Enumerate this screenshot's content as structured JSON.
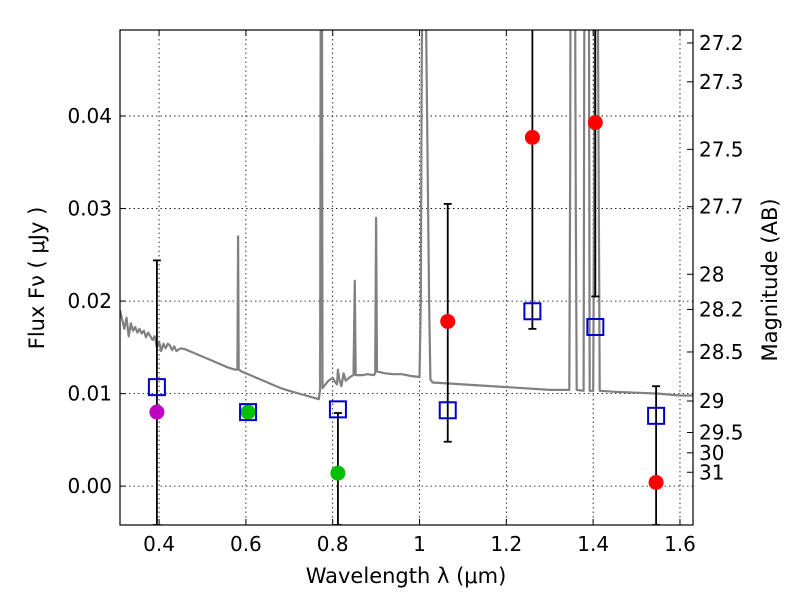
{
  "chart_data": {
    "type": "scatter",
    "title": "",
    "xlabel": "Wavelength  λ (μm)",
    "ylabel": "Flux  Fν  ( μJy )",
    "ylabel_right": "Magnitude (AB)",
    "xlim": [
      0.31,
      1.63
    ],
    "ylim": [
      -0.0042,
      0.0493
    ],
    "grid": true,
    "x_ticks": [
      0.4,
      0.6,
      0.8,
      1.0,
      1.2,
      1.4,
      1.6
    ],
    "x_tick_labels": [
      "0.4",
      "0.6",
      "0.8",
      "1",
      "1.2",
      "1.4",
      "1.6"
    ],
    "y_ticks": [
      0.0,
      0.01,
      0.02,
      0.03,
      0.04
    ],
    "y_tick_labels": [
      "0.00",
      "0.01",
      "0.02",
      "0.03",
      "0.04"
    ],
    "right_ticks": [
      {
        "label": "27.2",
        "flux": 0.0479
      },
      {
        "label": "27.3",
        "flux": 0.0437
      },
      {
        "label": "27.5",
        "flux": 0.0364
      },
      {
        "label": "27.7",
        "flux": 0.0302
      },
      {
        "label": "28",
        "flux": 0.0229
      },
      {
        "label": "28.2",
        "flux": 0.0191
      },
      {
        "label": "28.5",
        "flux": 0.0145
      },
      {
        "label": "29",
        "flux": 0.0092
      },
      {
        "label": "29.5",
        "flux": 0.0058
      },
      {
        "label": "30",
        "flux": 0.0036
      },
      {
        "label": "31",
        "flux": 0.0015
      }
    ],
    "sed_model": {
      "name": "best-fit SED",
      "color": "#808080",
      "points": [
        [
          0.31,
          0.019
        ],
        [
          0.32,
          0.017
        ],
        [
          0.325,
          0.0182
        ],
        [
          0.33,
          0.0162
        ],
        [
          0.335,
          0.0176
        ],
        [
          0.34,
          0.0168
        ],
        [
          0.345,
          0.0172
        ],
        [
          0.35,
          0.0166
        ],
        [
          0.355,
          0.017
        ],
        [
          0.36,
          0.0165
        ],
        [
          0.365,
          0.0168
        ],
        [
          0.37,
          0.0161
        ],
        [
          0.375,
          0.0166
        ],
        [
          0.38,
          0.0162
        ],
        [
          0.385,
          0.0158
        ],
        [
          0.39,
          0.0162
        ],
        [
          0.395,
          0.015
        ],
        [
          0.4,
          0.0156
        ],
        [
          0.405,
          0.0146
        ],
        [
          0.41,
          0.0154
        ],
        [
          0.415,
          0.0149
        ],
        [
          0.42,
          0.0154
        ],
        [
          0.425,
          0.0152
        ],
        [
          0.43,
          0.0147
        ],
        [
          0.435,
          0.0151
        ],
        [
          0.44,
          0.0146
        ],
        [
          0.45,
          0.0149
        ],
        [
          0.46,
          0.0148
        ],
        [
          0.47,
          0.0146
        ],
        [
          0.48,
          0.0144
        ],
        [
          0.5,
          0.014
        ],
        [
          0.52,
          0.0136
        ],
        [
          0.54,
          0.0132
        ],
        [
          0.56,
          0.0128
        ],
        [
          0.575,
          0.0126
        ],
        [
          0.5805,
          0.0126
        ],
        [
          0.582,
          0.027
        ],
        [
          0.5835,
          0.0126
        ],
        [
          0.59,
          0.0124
        ],
        [
          0.62,
          0.0118
        ],
        [
          0.65,
          0.0112
        ],
        [
          0.68,
          0.0106
        ],
        [
          0.7,
          0.0103
        ],
        [
          0.73,
          0.0099
        ],
        [
          0.76,
          0.0095
        ],
        [
          0.768,
          0.0094
        ],
        [
          0.771,
          0.0104
        ],
        [
          0.7725,
          0.06
        ],
        [
          0.775,
          0.06
        ],
        [
          0.7765,
          0.0106
        ],
        [
          0.78,
          0.0108
        ],
        [
          0.79,
          0.0114
        ],
        [
          0.8,
          0.0117
        ],
        [
          0.806,
          0.0112
        ],
        [
          0.81,
          0.011
        ],
        [
          0.812,
          0.0126
        ],
        [
          0.815,
          0.0116
        ],
        [
          0.82,
          0.0108
        ],
        [
          0.825,
          0.0122
        ],
        [
          0.83,
          0.0114
        ],
        [
          0.84,
          0.0118
        ],
        [
          0.848,
          0.012
        ],
        [
          0.851,
          0.0222
        ],
        [
          0.853,
          0.012
        ],
        [
          0.86,
          0.012
        ],
        [
          0.87,
          0.012
        ],
        [
          0.88,
          0.0121
        ],
        [
          0.895,
          0.012
        ],
        [
          0.898,
          0.0122
        ],
        [
          0.9,
          0.029
        ],
        [
          0.902,
          0.0124
        ],
        [
          0.92,
          0.0122
        ],
        [
          0.94,
          0.0121
        ],
        [
          0.96,
          0.0121
        ],
        [
          0.98,
          0.0119
        ],
        [
          1.0,
          0.0118
        ],
        [
          1.003,
          0.02
        ],
        [
          1.005,
          0.045
        ],
        [
          1.007,
          0.06
        ],
        [
          1.013,
          0.06
        ],
        [
          1.016,
          0.046
        ],
        [
          1.022,
          0.02
        ],
        [
          1.025,
          0.0115
        ],
        [
          1.026,
          0.0115
        ],
        [
          1.03,
          0.0112
        ],
        [
          1.1,
          0.011
        ],
        [
          1.2,
          0.0107
        ],
        [
          1.3,
          0.0104
        ],
        [
          1.345,
          0.0104
        ],
        [
          1.347,
          0.035
        ],
        [
          1.348,
          0.06
        ],
        [
          1.358,
          0.06
        ],
        [
          1.36,
          0.03
        ],
        [
          1.362,
          0.0104
        ],
        [
          1.378,
          0.0103
        ],
        [
          1.38,
          0.06
        ],
        [
          1.39,
          0.06
        ],
        [
          1.392,
          0.0103
        ],
        [
          1.4,
          0.0103
        ],
        [
          1.403,
          0.04
        ],
        [
          1.405,
          0.06
        ],
        [
          1.41,
          0.06
        ],
        [
          1.412,
          0.04
        ],
        [
          1.415,
          0.0103
        ],
        [
          1.45,
          0.0102
        ],
        [
          1.5,
          0.0101
        ],
        [
          1.55,
          0.01
        ],
        [
          1.6,
          0.0098
        ],
        [
          1.63,
          0.0098
        ]
      ]
    },
    "observed_photometry": [
      {
        "x": 0.395,
        "y": 0.008,
        "err_low": 0.0122,
        "err_high": 0.0164,
        "color": "#c000c0"
      },
      {
        "x": 0.605,
        "y": 0.008,
        "err_low": 0.0,
        "err_high": 0.0,
        "color": "#00c000"
      },
      {
        "x": 0.812,
        "y": 0.0014,
        "err_low": 0.0056,
        "err_high": 0.0065,
        "color": "#00c000"
      },
      {
        "x": 1.065,
        "y": 0.0178,
        "err_low": 0.013,
        "err_high": 0.0127,
        "color": "#ff0000"
      },
      {
        "x": 1.26,
        "y": 0.0377,
        "err_low": 0.0207,
        "err_high": 0.02,
        "color": "#ff0000"
      },
      {
        "x": 1.405,
        "y": 0.0393,
        "err_low": 0.0188,
        "err_high": 0.02,
        "color": "#ff0000"
      },
      {
        "x": 1.545,
        "y": 0.0004,
        "err_low": 0.0046,
        "err_high": 0.0104,
        "color": "#ff0000"
      }
    ],
    "model_photometry": {
      "marker": "open square",
      "color": "#0000cc",
      "points": [
        {
          "x": 0.395,
          "y": 0.0107
        },
        {
          "x": 0.605,
          "y": 0.008
        },
        {
          "x": 0.812,
          "y": 0.0083
        },
        {
          "x": 1.065,
          "y": 0.0082
        },
        {
          "x": 1.26,
          "y": 0.0189
        },
        {
          "x": 1.405,
          "y": 0.0172
        },
        {
          "x": 1.545,
          "y": 0.0076
        }
      ]
    }
  }
}
